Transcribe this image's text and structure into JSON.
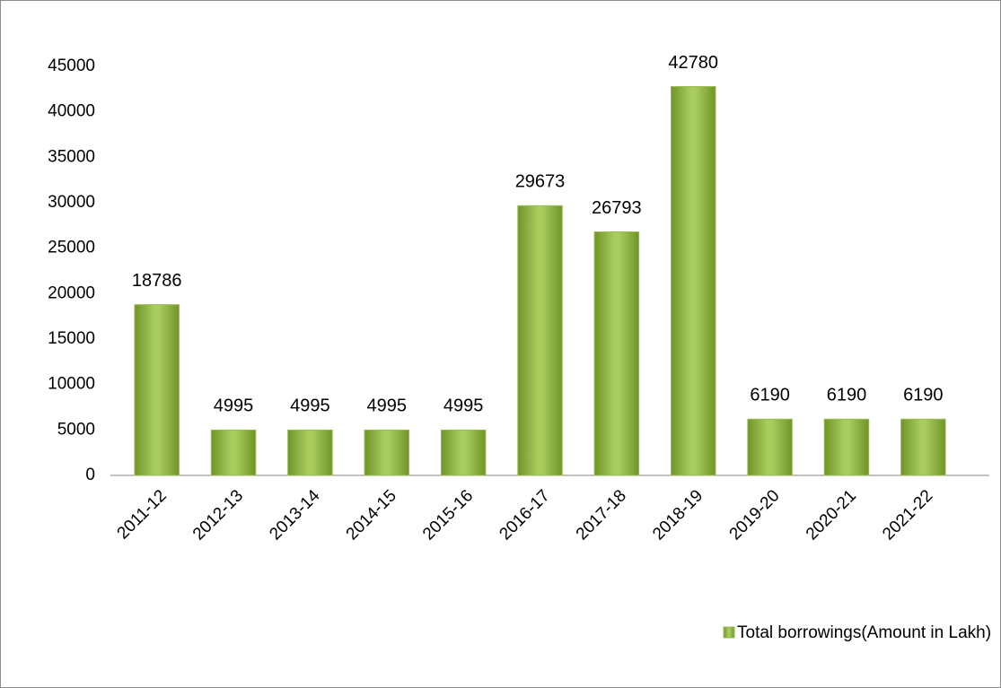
{
  "chart_data": {
    "type": "bar",
    "categories": [
      "2011-12",
      "2012-13",
      "2013-14",
      "2014-15",
      "2015-16",
      "2016-17",
      "2017-18",
      "2018-19",
      "2019-20",
      "2020-21",
      "2021-22"
    ],
    "series": [
      {
        "name": "Total borrowings(Amount in Lakh)",
        "color": "#9bbb59",
        "values": [
          18786,
          4995,
          4995,
          4995,
          4995,
          29673,
          26793,
          42780,
          6190,
          6190,
          6190
        ]
      }
    ],
    "ylim": [
      0,
      45000
    ],
    "yticks": [
      0,
      5000,
      10000,
      15000,
      20000,
      25000,
      30000,
      35000,
      40000,
      45000
    ],
    "grid": false,
    "legend": "bottom",
    "data_labels": true
  }
}
